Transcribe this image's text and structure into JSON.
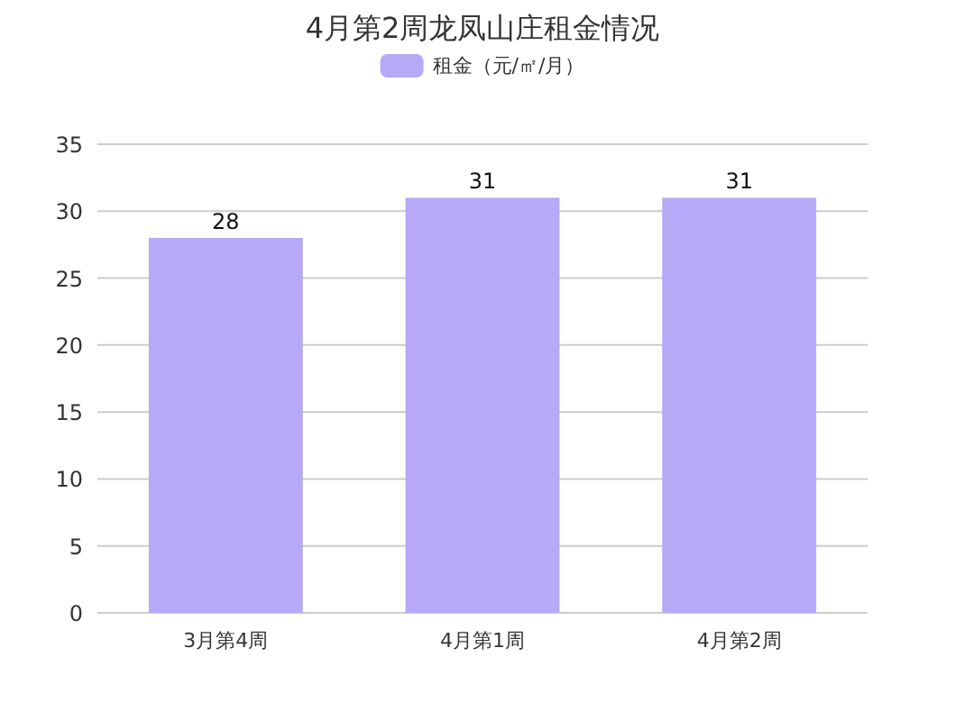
{
  "chart_data": {
    "type": "bar",
    "title": "4月第2周龙凤山庄租金情况",
    "categories": [
      "3月第4周",
      "4月第1周",
      "4月第2周"
    ],
    "series": [
      {
        "name": "租金（元/㎡/月）",
        "color": "#b7a9f7",
        "values": [
          28,
          31,
          31
        ]
      }
    ],
    "ylim": [
      0,
      35
    ],
    "yticks": [
      0,
      5,
      10,
      15,
      20,
      25,
      30,
      35
    ],
    "grid": "y",
    "legend": "top",
    "data_labels": true
  }
}
